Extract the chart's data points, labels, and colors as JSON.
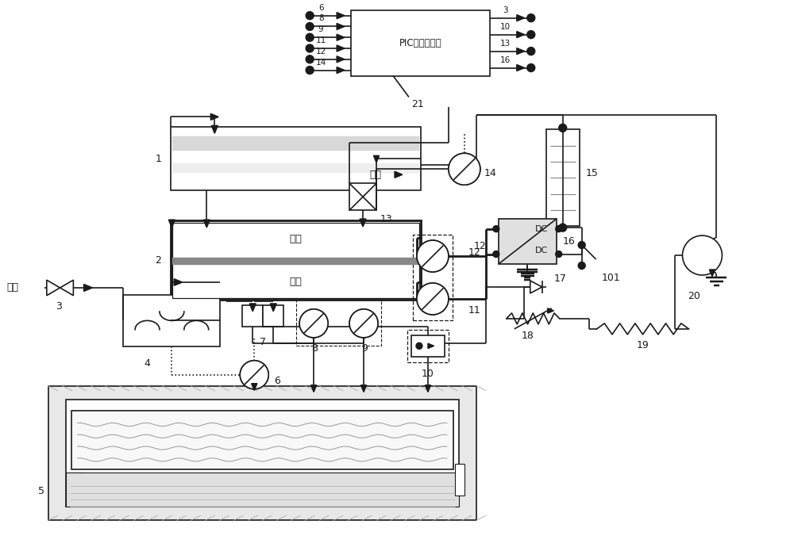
{
  "bg_color": "#ffffff",
  "line_color": "#1a1a1a",
  "lw": 1.2,
  "lw2": 2.0,
  "cathode_text": "阴极",
  "anode_text": "阳极",
  "exhaust_text": "排气",
  "air_text": "空气",
  "pic_text": "PIC微型控制器",
  "dc_text": "DC",
  "input_labels": [
    "6",
    "8",
    "9",
    "11",
    "12",
    "14"
  ],
  "output_labels": [
    "3",
    "10",
    "13",
    "16"
  ]
}
